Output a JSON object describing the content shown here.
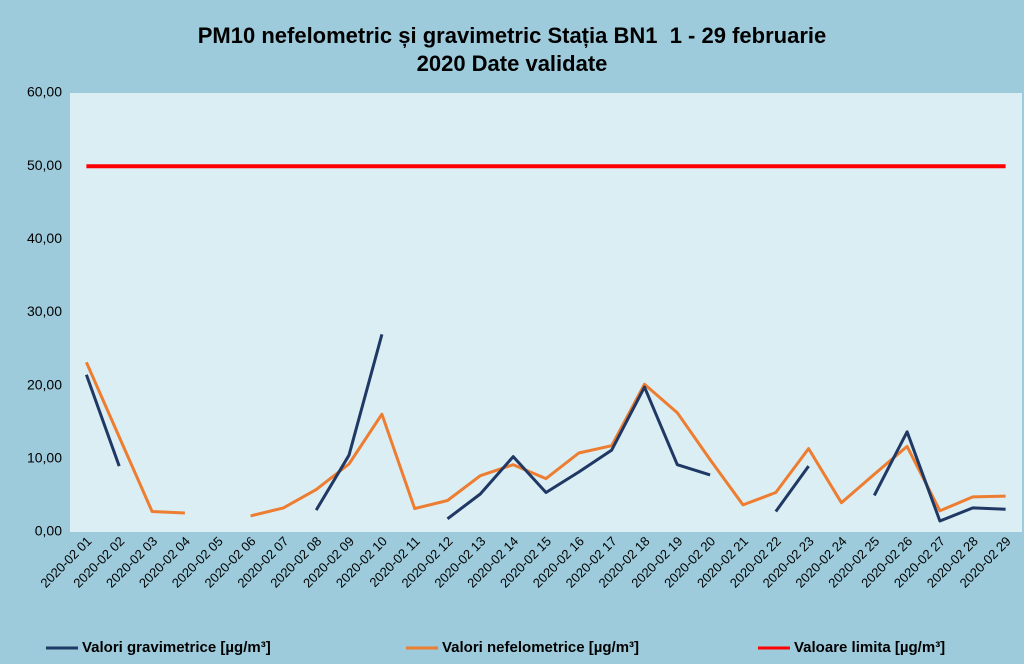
{
  "chart_data": {
    "type": "line",
    "title": "PM10 nefelometric și gravimetric Stația BN1  1 - 29 februarie 2020 Date validate",
    "categories": [
      "2020-02 01",
      "2020-02 02",
      "2020-02 03",
      "2020-02 04",
      "2020-02 05",
      "2020-02 06",
      "2020-02 07",
      "2020-02 08",
      "2020-02 09",
      "2020-02 10",
      "2020-02 11",
      "2020-02 12",
      "2020-02 13",
      "2020-02 14",
      "2020-02 15",
      "2020-02 16",
      "2020-02 17",
      "2020-02 18",
      "2020-02 19",
      "2020-02 20",
      "2020-02 21",
      "2020-02 22",
      "2020-02 23",
      "2020-02 24",
      "2020-02 25",
      "2020-02 26",
      "2020-02 27",
      "2020-02 28",
      "2020-02 29"
    ],
    "series": [
      {
        "name": "Valori gravimetrice [µg/m³]",
        "color": "#1f3864",
        "values": [
          21.5,
          9.0,
          null,
          null,
          null,
          null,
          null,
          3.0,
          10.5,
          27.0,
          null,
          1.8,
          5.2,
          10.3,
          5.4,
          8.2,
          11.2,
          19.8,
          9.2,
          7.8,
          null,
          2.8,
          9.0,
          null,
          5.0,
          13.7,
          1.5,
          3.3,
          3.1
        ]
      },
      {
        "name": "Valori nefelometrice [µg/m³]",
        "color": "#ed7d31",
        "values": [
          23.2,
          13.0,
          2.8,
          2.6,
          null,
          2.2,
          3.3,
          5.8,
          9.3,
          16.1,
          3.2,
          4.3,
          7.7,
          9.2,
          7.3,
          10.8,
          11.8,
          20.2,
          16.3,
          9.9,
          3.7,
          5.4,
          11.4,
          4.0,
          7.9,
          11.7,
          2.9,
          4.8,
          4.9
        ]
      },
      {
        "name": "Valoare limita [µg/m³]",
        "color": "#ff0000",
        "values": [
          50,
          50,
          50,
          50,
          50,
          50,
          50,
          50,
          50,
          50,
          50,
          50,
          50,
          50,
          50,
          50,
          50,
          50,
          50,
          50,
          50,
          50,
          50,
          50,
          50,
          50,
          50,
          50,
          50
        ]
      }
    ],
    "ylim": [
      0,
      60
    ],
    "yticks": [
      {
        "value": 0,
        "label": "0,00"
      },
      {
        "value": 10,
        "label": "10,00"
      },
      {
        "value": 20,
        "label": "20,00"
      },
      {
        "value": 30,
        "label": "30,00"
      },
      {
        "value": 40,
        "label": "40,00"
      },
      {
        "value": 50,
        "label": "50,00"
      },
      {
        "value": 60,
        "label": "60,00"
      }
    ],
    "grid": false
  }
}
